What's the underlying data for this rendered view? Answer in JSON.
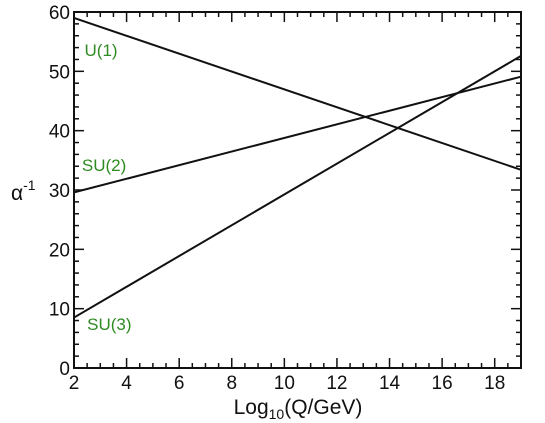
{
  "chart_data": {
    "type": "line",
    "xlabel": {
      "base": "Log",
      "sub": "10",
      "rest": "(Q/GeV)"
    },
    "ylabel": {
      "base": "α",
      "sup": "-1"
    },
    "xlim": [
      2,
      19
    ],
    "ylim": [
      0,
      60
    ],
    "x_ticks": [
      2,
      4,
      6,
      8,
      10,
      12,
      14,
      16,
      18
    ],
    "y_ticks": [
      0,
      10,
      20,
      30,
      40,
      50,
      60
    ],
    "grid": false,
    "legend": "none",
    "label_color": "#2e8b22",
    "line_color": "#111111",
    "series": [
      {
        "name": "U(1)",
        "x": [
          2,
          19
        ],
        "y": [
          59.0,
          33.4
        ]
      },
      {
        "name": "SU(2)",
        "x": [
          2,
          19
        ],
        "y": [
          29.6,
          49.1
        ]
      },
      {
        "name": "SU(3)",
        "x": [
          2,
          19
        ],
        "y": [
          8.5,
          52.6
        ]
      }
    ]
  }
}
